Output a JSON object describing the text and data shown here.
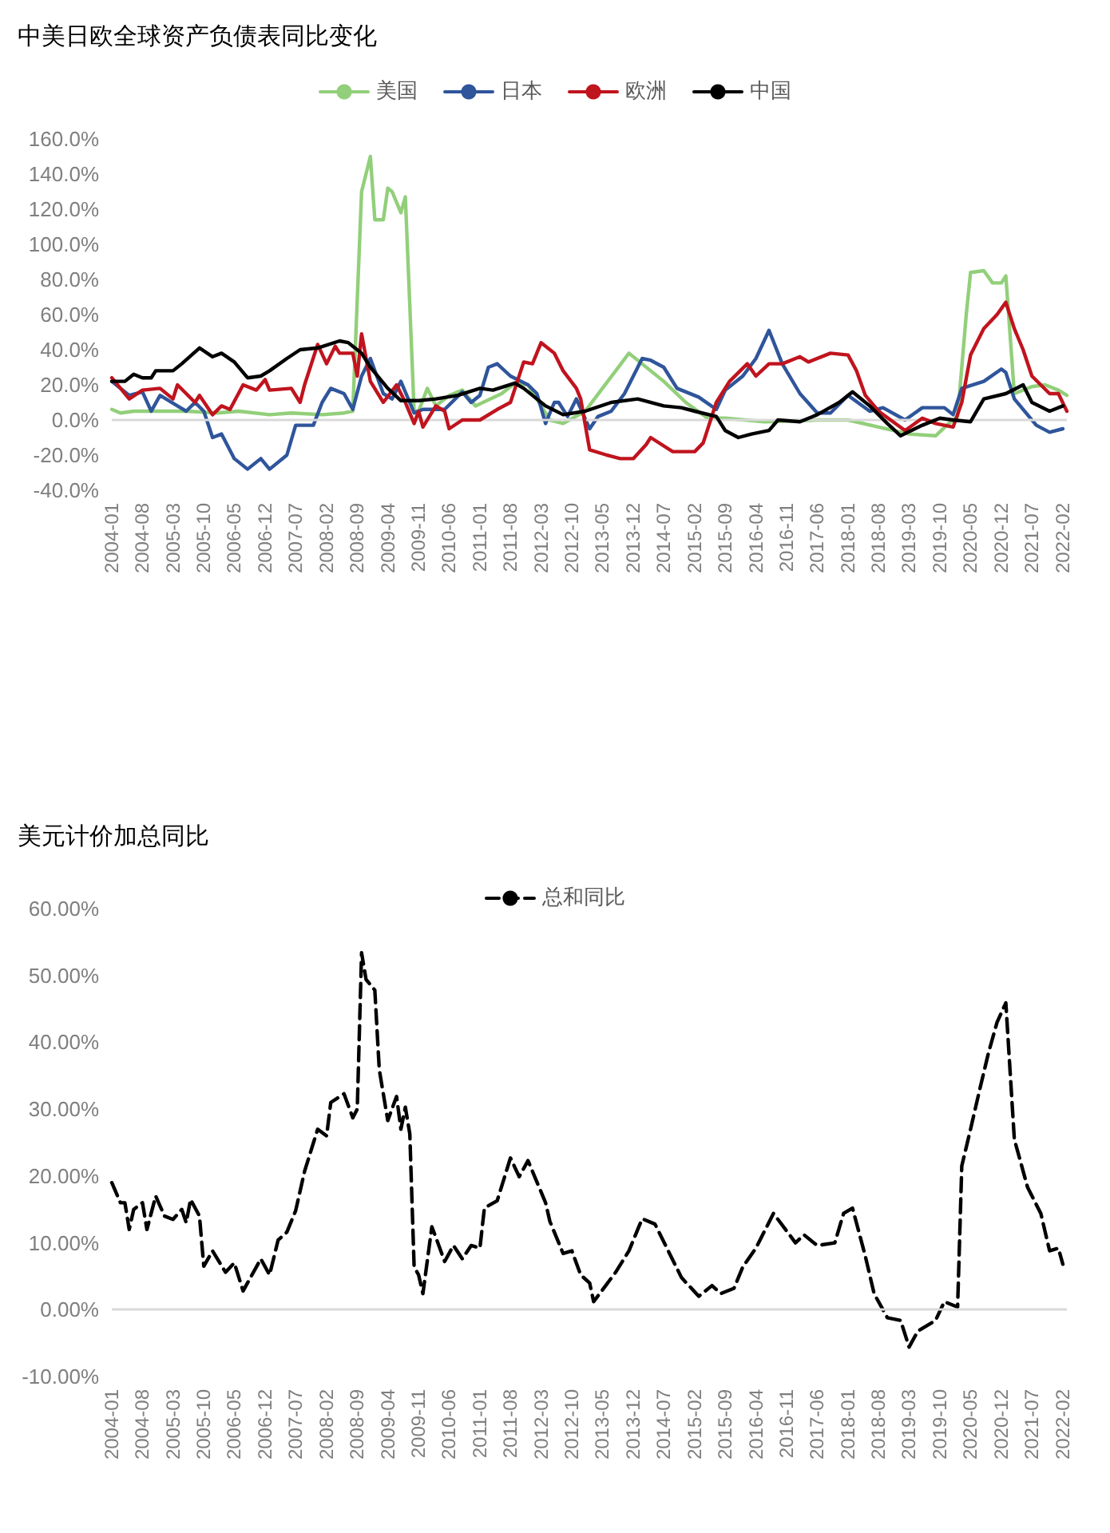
{
  "chart_data": [
    {
      "type": "line",
      "title": "中美日欧全球资产负债表同比变化",
      "legend": "top",
      "grid": false,
      "marker": "none",
      "line_style": "solid",
      "xlim": [
        "2004-01",
        "2022-03"
      ],
      "xticks": [
        "2004-01",
        "2004-08",
        "2005-03",
        "2005-10",
        "2006-05",
        "2006-12",
        "2007-07",
        "2008-02",
        "2008-09",
        "2009-04",
        "2009-11",
        "2010-06",
        "2011-01",
        "2011-08",
        "2012-03",
        "2012-10",
        "2013-05",
        "2013-12",
        "2014-07",
        "2015-02",
        "2015-09",
        "2016-04",
        "2016-11",
        "2017-06",
        "2018-01",
        "2018-08",
        "2019-03",
        "2019-10",
        "2020-05",
        "2020-12",
        "2021-07",
        "2022-02"
      ],
      "ylim": [
        -40,
        160
      ],
      "yticks": [
        {
          "value": -40,
          "label": "-40.0%"
        },
        {
          "value": -20,
          "label": "-20.0%"
        },
        {
          "value": 0,
          "label": "0.0%"
        },
        {
          "value": 20,
          "label": "20.0%"
        },
        {
          "value": 40,
          "label": "40.0%"
        },
        {
          "value": 60,
          "label": "60.0%"
        },
        {
          "value": 80,
          "label": "80.0%"
        },
        {
          "value": 100,
          "label": "100.0%"
        },
        {
          "value": 120,
          "label": "120.0%"
        },
        {
          "value": 140,
          "label": "140.0%"
        },
        {
          "value": 160,
          "label": "160.0%"
        }
      ],
      "ref_lines": [
        {
          "axis": "y",
          "value": 0,
          "color": "#d9d9d9"
        }
      ],
      "series": [
        {
          "name": "美国",
          "color": "#92cf7a",
          "x": [
            "2004-01",
            "2004-03",
            "2004-06",
            "2004-12",
            "2005-06",
            "2006-01",
            "2006-06",
            "2007-01",
            "2007-06",
            "2008-01",
            "2008-06",
            "2008-08",
            "2008-10",
            "2008-12",
            "2009-01",
            "2009-03",
            "2009-04",
            "2009-05",
            "2009-07",
            "2009-08",
            "2009-10",
            "2009-11",
            "2010-01",
            "2010-03",
            "2010-06",
            "2010-09",
            "2010-12",
            "2011-06",
            "2011-09",
            "2011-12",
            "2012-03",
            "2012-05",
            "2012-08",
            "2013-01",
            "2013-05",
            "2013-11",
            "2014-07",
            "2014-12",
            "2015-05",
            "2015-09",
            "2016-06",
            "2017-06",
            "2018-01",
            "2018-08",
            "2019-03",
            "2019-09",
            "2019-12",
            "2020-02",
            "2020-04",
            "2020-05",
            "2020-08",
            "2020-10",
            "2020-12",
            "2021-01",
            "2021-03",
            "2021-07",
            "2021-10",
            "2022-01",
            "2022-03"
          ],
          "values": [
            6,
            4,
            5,
            5,
            5,
            4,
            5,
            3,
            4,
            3,
            4,
            5,
            130,
            150,
            114,
            114,
            132,
            130,
            118,
            127,
            5,
            5,
            18,
            8,
            14,
            17,
            8,
            15,
            21,
            20,
            8,
            0,
            -2,
            5,
            18,
            38,
            22,
            10,
            1,
            1,
            -1,
            0,
            0,
            -4,
            -8,
            -9,
            -2,
            2,
            60,
            84,
            85,
            78,
            78,
            82,
            15,
            19,
            20,
            17,
            14
          ]
        },
        {
          "name": "日本",
          "color": "#2f559b",
          "x": [
            "2004-01",
            "2004-05",
            "2004-08",
            "2004-10",
            "2004-12",
            "2005-04",
            "2005-06",
            "2005-08",
            "2005-10",
            "2005-12",
            "2006-02",
            "2006-05",
            "2006-08",
            "2006-11",
            "2007-01",
            "2007-05",
            "2007-07",
            "2007-11",
            "2008-01",
            "2008-03",
            "2008-06",
            "2008-08",
            "2008-10",
            "2008-12",
            "2009-03",
            "2009-05",
            "2009-07",
            "2009-10",
            "2009-12",
            "2010-05",
            "2010-09",
            "2010-11",
            "2011-01",
            "2011-03",
            "2011-05",
            "2011-08",
            "2011-12",
            "2012-02",
            "2012-04",
            "2012-06",
            "2012-07",
            "2012-09",
            "2012-11",
            "2013-02",
            "2013-04",
            "2013-07",
            "2013-10",
            "2014-02",
            "2014-04",
            "2014-07",
            "2014-10",
            "2015-03",
            "2015-07",
            "2015-09",
            "2016-01",
            "2016-04",
            "2016-07",
            "2016-10",
            "2017-02",
            "2017-06",
            "2017-09",
            "2018-01",
            "2018-06",
            "2018-09",
            "2019-02",
            "2019-06",
            "2019-11",
            "2020-01",
            "2020-03",
            "2020-08",
            "2020-12",
            "2021-01",
            "2021-03",
            "2021-08",
            "2021-11",
            "2022-02"
          ],
          "values": [
            22,
            14,
            16,
            5,
            14,
            8,
            5,
            10,
            5,
            -10,
            -8,
            -22,
            -28,
            -22,
            -28,
            -20,
            -3,
            -3,
            10,
            18,
            15,
            6,
            25,
            35,
            15,
            12,
            22,
            4,
            6,
            6,
            16,
            10,
            14,
            30,
            32,
            25,
            20,
            15,
            -2,
            10,
            10,
            2,
            12,
            -5,
            2,
            5,
            15,
            35,
            34,
            30,
            18,
            13,
            6,
            17,
            25,
            35,
            51,
            32,
            15,
            4,
            4,
            14,
            5,
            7,
            0,
            7,
            7,
            3,
            18,
            22,
            29,
            27,
            12,
            -3,
            -7,
            -5
          ]
        },
        {
          "name": "欧洲",
          "color": "#c0141e",
          "x": [
            "2004-01",
            "2004-05",
            "2004-08",
            "2004-12",
            "2005-03",
            "2005-04",
            "2005-08",
            "2005-09",
            "2005-12",
            "2006-02",
            "2006-04",
            "2006-07",
            "2006-10",
            "2006-12",
            "2007-01",
            "2007-06",
            "2007-08",
            "2007-09",
            "2007-12",
            "2008-02",
            "2008-04",
            "2008-05",
            "2008-08",
            "2008-09",
            "2008-10",
            "2008-12",
            "2009-03",
            "2009-06",
            "2009-08",
            "2009-10",
            "2009-11",
            "2009-12",
            "2010-03",
            "2010-05",
            "2010-06",
            "2010-09",
            "2011-01",
            "2011-05",
            "2011-08",
            "2011-11",
            "2012-01",
            "2012-03",
            "2012-06",
            "2012-08",
            "2012-11",
            "2012-12",
            "2013-02",
            "2013-06",
            "2013-09",
            "2013-12",
            "2014-03",
            "2014-04",
            "2014-09",
            "2015-02",
            "2015-04",
            "2015-07",
            "2015-10",
            "2016-02",
            "2016-04",
            "2016-07",
            "2016-10",
            "2017-02",
            "2017-04",
            "2017-09",
            "2018-01",
            "2018-03",
            "2018-05",
            "2018-08",
            "2019-02",
            "2019-06",
            "2019-09",
            "2020-01",
            "2020-03",
            "2020-05",
            "2020-08",
            "2020-11",
            "2021-01",
            "2021-03",
            "2021-05",
            "2021-07",
            "2021-11",
            "2022-01",
            "2022-03"
          ],
          "values": [
            24,
            12,
            17,
            18,
            12,
            20,
            10,
            14,
            3,
            8,
            6,
            20,
            17,
            23,
            17,
            18,
            10,
            20,
            43,
            32,
            42,
            38,
            38,
            25,
            49,
            22,
            10,
            20,
            10,
            -2,
            5,
            -4,
            8,
            5,
            -5,
            0,
            0,
            6,
            10,
            33,
            32,
            44,
            38,
            28,
            18,
            12,
            -17,
            -20,
            -22,
            -22,
            -14,
            -10,
            -18,
            -18,
            -13,
            10,
            22,
            32,
            25,
            32,
            32,
            36,
            33,
            38,
            37,
            28,
            14,
            5,
            -6,
            1,
            -2,
            -4,
            10,
            37,
            52,
            60,
            67,
            52,
            40,
            25,
            15,
            15,
            5
          ]
        },
        {
          "name": "中国",
          "color": "#000000",
          "x": [
            "2004-01",
            "2004-04",
            "2004-06",
            "2004-08",
            "2004-10",
            "2004-11",
            "2005-03",
            "2005-05",
            "2005-09",
            "2005-12",
            "2006-02",
            "2006-05",
            "2006-08",
            "2006-11",
            "2007-01",
            "2007-05",
            "2007-08",
            "2007-12",
            "2008-05",
            "2008-07",
            "2008-10",
            "2008-12",
            "2009-04",
            "2009-07",
            "2009-11",
            "2010-03",
            "2010-08",
            "2011-01",
            "2011-04",
            "2011-09",
            "2011-11",
            "2012-04",
            "2012-08",
            "2013-01",
            "2013-07",
            "2014-01",
            "2014-07",
            "2014-11",
            "2015-02",
            "2015-07",
            "2015-09",
            "2015-12",
            "2016-03",
            "2016-07",
            "2016-09",
            "2017-02",
            "2017-06",
            "2017-11",
            "2018-02",
            "2018-06",
            "2018-10",
            "2019-01",
            "2019-06",
            "2019-10",
            "2020-01",
            "2020-05",
            "2020-08",
            "2021-01",
            "2021-05",
            "2021-07",
            "2021-11",
            "2022-02"
          ],
          "values": [
            22,
            22,
            26,
            24,
            24,
            28,
            28,
            32,
            41,
            36,
            38,
            33,
            24,
            25,
            28,
            35,
            40,
            41,
            45,
            44,
            38,
            30,
            18,
            11,
            11,
            12,
            14,
            18,
            17,
            21,
            18,
            8,
            3,
            5,
            10,
            12,
            8,
            7,
            5,
            2,
            -6,
            -10,
            -8,
            -6,
            0,
            -1,
            3,
            10,
            16,
            8,
            -2,
            -9,
            -3,
            1,
            0,
            -1,
            12,
            15,
            20,
            10,
            5,
            8
          ]
        }
      ]
    },
    {
      "type": "line",
      "title": "美元计价加总同比",
      "legend": "top",
      "grid": false,
      "marker": "none",
      "line_style": "dashed",
      "xlim": [
        "2004-01",
        "2022-03"
      ],
      "xticks": [
        "2004-01",
        "2004-08",
        "2005-03",
        "2005-10",
        "2006-05",
        "2006-12",
        "2007-07",
        "2008-02",
        "2008-09",
        "2009-04",
        "2009-11",
        "2010-06",
        "2011-01",
        "2011-08",
        "2012-03",
        "2012-10",
        "2013-05",
        "2013-12",
        "2014-07",
        "2015-02",
        "2015-09",
        "2016-04",
        "2016-11",
        "2017-06",
        "2018-01",
        "2018-08",
        "2019-03",
        "2019-10",
        "2020-05",
        "2020-12",
        "2021-07",
        "2022-02"
      ],
      "ylim": [
        -10,
        60
      ],
      "yticks": [
        {
          "value": -10,
          "label": "-10.00%"
        },
        {
          "value": 0,
          "label": "0.00%"
        },
        {
          "value": 10,
          "label": "10.00%"
        },
        {
          "value": 20,
          "label": "20.00%"
        },
        {
          "value": 30,
          "label": "30.00%"
        },
        {
          "value": 40,
          "label": "40.00%"
        },
        {
          "value": 50,
          "label": "50.00%"
        },
        {
          "value": 60,
          "label": "60.00%"
        }
      ],
      "ref_lines": [
        {
          "axis": "y",
          "value": 0,
          "color": "#d9d9d9"
        }
      ],
      "series": [
        {
          "name": "总和同比",
          "color": "#000000",
          "x": [
            "2004-01",
            "2004-03",
            "2004-04",
            "2004-05",
            "2004-06",
            "2004-08",
            "2004-09",
            "2004-11",
            "2005-01",
            "2005-03",
            "2005-05",
            "2005-06",
            "2005-07",
            "2005-09",
            "2005-10",
            "2005-12",
            "2006-03",
            "2006-05",
            "2006-07",
            "2006-11",
            "2007-01",
            "2007-03",
            "2007-05",
            "2007-07",
            "2007-09",
            "2007-12",
            "2008-02",
            "2008-03",
            "2008-06",
            "2008-08",
            "2008-09",
            "2008-10",
            "2008-11",
            "2009-01",
            "2009-02",
            "2009-04",
            "2009-06",
            "2009-07",
            "2009-08",
            "2009-09",
            "2009-10",
            "2009-11",
            "2009-12",
            "2010-02",
            "2010-03",
            "2010-05",
            "2010-07",
            "2010-09",
            "2010-11",
            "2011-01",
            "2011-02",
            "2011-05",
            "2011-08",
            "2011-10",
            "2011-12",
            "2012-04",
            "2012-05",
            "2012-08",
            "2012-10",
            "2012-12",
            "2013-02",
            "2013-03",
            "2013-08",
            "2013-11",
            "2014-02",
            "2014-05",
            "2014-08",
            "2014-11",
            "2015-03",
            "2015-06",
            "2015-08",
            "2015-11",
            "2016-01",
            "2016-04",
            "2016-08",
            "2017-01",
            "2017-03",
            "2017-06",
            "2017-10",
            "2017-12",
            "2018-02",
            "2018-05",
            "2018-07",
            "2018-10",
            "2019-01",
            "2019-03",
            "2019-05",
            "2019-09",
            "2019-11",
            "2020-02",
            "2020-03",
            "2020-05",
            "2020-07",
            "2020-09",
            "2020-11",
            "2021-01",
            "2021-03",
            "2021-06",
            "2021-09",
            "2021-11",
            "2022-01",
            "2022-02"
          ],
          "values": [
            19,
            16,
            16,
            12,
            15,
            16,
            12,
            17,
            14,
            13.5,
            15,
            13,
            16.5,
            14,
            6.5,
            8.8,
            5.6,
            7,
            2.8,
            7.6,
            5.2,
            10.4,
            11.6,
            14.8,
            20.7,
            27,
            26,
            31,
            32.3,
            28.7,
            30,
            53.4,
            49.4,
            47.8,
            35.9,
            28.3,
            31.9,
            27,
            30.3,
            26.3,
            6.4,
            5.2,
            2.4,
            12.4,
            10.8,
            7.2,
            9.6,
            7.6,
            9.6,
            9.2,
            15.2,
            16.3,
            22.7,
            19.9,
            22.3,
            16,
            13.2,
            8.4,
            8.8,
            5.2,
            4,
            1.2,
            5.6,
            8.8,
            13.6,
            12.8,
            8.8,
            4.8,
            2,
            3.6,
            2.4,
            3.2,
            6.4,
            9.2,
            14.4,
            10,
            11.2,
            9.6,
            10,
            14.4,
            15.2,
            8,
            2.4,
            -1.2,
            -1.6,
            -5.6,
            -3.2,
            -1.6,
            1.2,
            0.4,
            21.5,
            27,
            32.7,
            38.3,
            43,
            45.9,
            25.5,
            18.3,
            14.4,
            8.8,
            9.2,
            6.8
          ]
        }
      ]
    }
  ]
}
